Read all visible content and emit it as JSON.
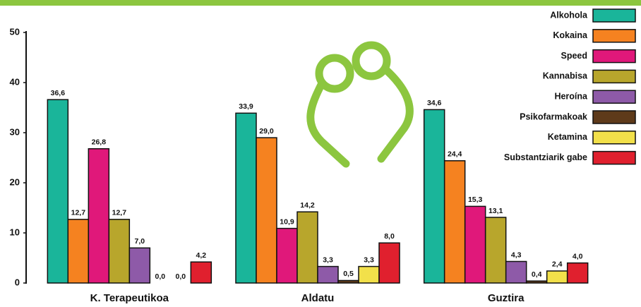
{
  "chart_data": {
    "type": "bar",
    "categories": [
      "K. Terapeutikoa",
      "Aldatu",
      "Guztira"
    ],
    "series": [
      {
        "name": "Alkohola",
        "color": "#1ab59a",
        "values": [
          36.6,
          33.9,
          34.6
        ],
        "value_labels": [
          "36,6",
          "33,9",
          "34,6"
        ]
      },
      {
        "name": "Kokaina",
        "color": "#f58220",
        "values": [
          12.7,
          29.0,
          24.4
        ],
        "value_labels": [
          "12,7",
          "29,0",
          "24,4"
        ]
      },
      {
        "name": "Speed",
        "color": "#e0187a",
        "values": [
          26.8,
          10.9,
          15.3
        ],
        "value_labels": [
          "26,8",
          "10,9",
          "15,3"
        ]
      },
      {
        "name": "Kannabisa",
        "color": "#b8a62c",
        "values": [
          12.7,
          14.2,
          13.1
        ],
        "value_labels": [
          "12,7",
          "14,2",
          "13,1"
        ]
      },
      {
        "name": "Heroína",
        "color": "#8e5aa8",
        "values": [
          7.0,
          3.3,
          4.3
        ],
        "value_labels": [
          "7,0",
          "3,3",
          "4,3"
        ]
      },
      {
        "name": "Psikofarmakoak",
        "color": "#5e3a1a",
        "values": [
          0.0,
          0.5,
          0.4
        ],
        "value_labels": [
          "0,0",
          "0,5",
          "0,4"
        ]
      },
      {
        "name": "Ketamina",
        "color": "#f2e04a",
        "values": [
          0.0,
          3.3,
          2.4
        ],
        "value_labels": [
          "0,0",
          "3,3",
          "2,4"
        ]
      },
      {
        "name": "Substantziarik gabe",
        "color": "#e0202e",
        "values": [
          4.2,
          8.0,
          4.0
        ],
        "value_labels": [
          "4,2",
          "8,0",
          "4,0"
        ]
      }
    ],
    "ylim": [
      0,
      50
    ],
    "yticks": [
      0,
      10,
      20,
      30,
      40,
      50
    ],
    "legend": "top-right"
  }
}
